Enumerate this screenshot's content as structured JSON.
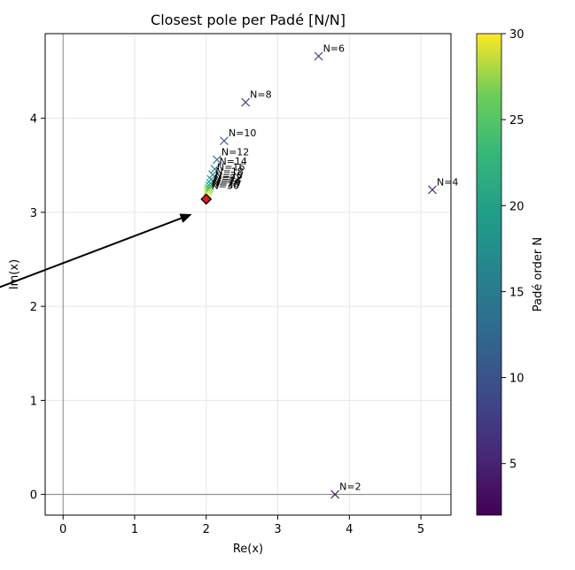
{
  "chart_data": {
    "type": "scatter",
    "title": "Closest pole per Padé [N/N]",
    "xlabel": "Re(x)",
    "ylabel": "Im(x)",
    "xlim": [
      -0.25,
      5.42
    ],
    "ylim": [
      -0.22,
      4.9
    ],
    "xticks": [
      0,
      1,
      2,
      3,
      4,
      5
    ],
    "yticks": [
      0,
      1,
      2,
      3,
      4
    ],
    "grid": true,
    "reference_lines": {
      "x": 0,
      "y": 0
    },
    "marker": "x",
    "colormap": "viridis",
    "colorbar": {
      "label": "Padé order N",
      "range": [
        2,
        30
      ],
      "ticks": [
        5,
        10,
        15,
        20,
        25,
        30
      ]
    },
    "points": [
      {
        "N": 2,
        "re": 3.8,
        "im": 0.0,
        "label": "N=2"
      },
      {
        "N": 4,
        "re": 5.16,
        "im": 3.24,
        "label": "N=4"
      },
      {
        "N": 6,
        "re": 3.57,
        "im": 4.66,
        "label": "N=6"
      },
      {
        "N": 8,
        "re": 2.55,
        "im": 4.17,
        "label": "N=8"
      },
      {
        "N": 10,
        "re": 2.25,
        "im": 3.76,
        "label": "N=10"
      },
      {
        "N": 12,
        "re": 2.15,
        "im": 3.56,
        "label": "N=12"
      },
      {
        "N": 14,
        "re": 2.12,
        "im": 3.46,
        "label": "N=14"
      },
      {
        "N": 16,
        "re": 2.09,
        "im": 3.4,
        "label": "N=16"
      },
      {
        "N": 18,
        "re": 2.07,
        "im": 3.35,
        "label": "N=18"
      },
      {
        "N": 20,
        "re": 2.06,
        "im": 3.31,
        "label": "N=20"
      },
      {
        "N": 22,
        "re": 2.05,
        "im": 3.28,
        "label": "N=22"
      },
      {
        "N": 24,
        "re": 2.04,
        "im": 3.26,
        "label": "N=24"
      },
      {
        "N": 26,
        "re": 2.03,
        "im": 3.24,
        "label": "N=26"
      },
      {
        "N": 28,
        "re": 2.02,
        "im": 3.22,
        "label": "N=28"
      },
      {
        "N": 30,
        "re": 2.01,
        "im": 3.2,
        "label": "N=30"
      }
    ],
    "target": {
      "re": 2.0,
      "im": 3.14,
      "marker": "diamond",
      "color": "#e31a1c"
    },
    "arrow": {
      "from": [
        -0.9,
        2.2
      ],
      "to": [
        1.8,
        2.98
      ]
    }
  }
}
